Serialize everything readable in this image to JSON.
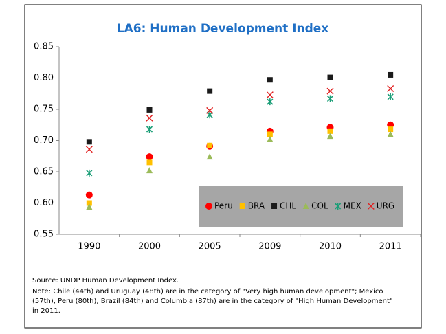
{
  "chart_data": {
    "type": "scatter",
    "title": "LA6: Human Development Index",
    "categories": [
      "1990",
      "2000",
      "2005",
      "2009",
      "2010",
      "2011"
    ],
    "series": [
      {
        "name": "Peru",
        "color": "#ff0000",
        "marker": "circle",
        "values": [
          0.613,
          0.674,
          0.691,
          0.715,
          0.721,
          0.725
        ]
      },
      {
        "name": "BRA",
        "color": "#ffc000",
        "marker": "square",
        "values": [
          0.6,
          0.665,
          0.692,
          0.71,
          0.715,
          0.718
        ]
      },
      {
        "name": "CHL",
        "color": "#1a1a1a",
        "marker": "square",
        "values": [
          0.698,
          0.749,
          0.779,
          0.797,
          0.801,
          0.805
        ]
      },
      {
        "name": "COL",
        "color": "#9bbb59",
        "marker": "triangle",
        "values": [
          0.594,
          0.652,
          0.674,
          0.702,
          0.707,
          0.71
        ]
      },
      {
        "name": "MEX",
        "color": "#1a9e77",
        "marker": "asterisk",
        "values": [
          0.648,
          0.718,
          0.741,
          0.762,
          0.767,
          0.77
        ]
      },
      {
        "name": "URG",
        "color": "#e02020",
        "marker": "x",
        "values": [
          0.686,
          0.736,
          0.748,
          0.773,
          0.779,
          0.783
        ]
      }
    ],
    "ylim": [
      0.55,
      0.85
    ],
    "yticks": [
      {
        "value": 0.55,
        "label": "0.55"
      },
      {
        "value": 0.6,
        "label": "0.60"
      },
      {
        "value": 0.65,
        "label": "0.65"
      },
      {
        "value": 0.7,
        "label": "0.70"
      },
      {
        "value": 0.75,
        "label": "0.75"
      },
      {
        "value": 0.8,
        "label": "0.80"
      },
      {
        "value": 0.85,
        "label": "0.85"
      }
    ],
    "grid": false,
    "legend": "lower-right",
    "source": "Source: UNDP Human Development Index.",
    "note": [
      "Note: Chile (44th) and Uruguay (48th) are in the category of \"Very high human development\"; Mexico",
      "(57th), Peru (80th), Brazil (84th) and Columbia (87th) are in the category of \"High Human Development\"",
      "in 2011."
    ]
  }
}
